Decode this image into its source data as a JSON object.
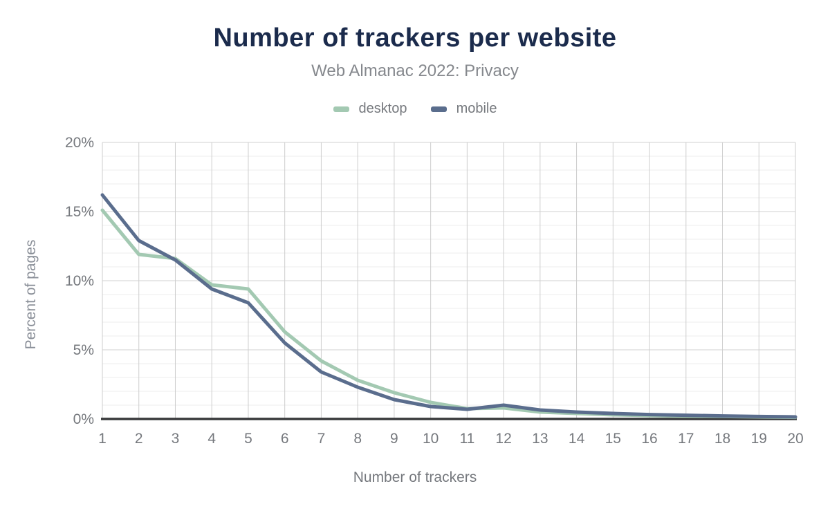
{
  "header": {
    "title": "Number of trackers per website",
    "subtitle": "Web Almanac 2022: Privacy"
  },
  "legend": {
    "items": [
      {
        "label": "desktop",
        "color": "#a3c9b2"
      },
      {
        "label": "mobile",
        "color": "#5a6d8d"
      }
    ]
  },
  "axes": {
    "xlabel": "Number of trackers",
    "ylabel": "Percent of pages"
  },
  "chart_data": {
    "type": "line",
    "title": "Number of trackers per website",
    "subtitle": "Web Almanac 2022: Privacy",
    "xlabel": "Number of trackers",
    "ylabel": "Percent of pages",
    "x": [
      1,
      2,
      3,
      4,
      5,
      6,
      7,
      8,
      9,
      10,
      11,
      12,
      13,
      14,
      15,
      16,
      17,
      18,
      19,
      20
    ],
    "xtick_labels": [
      "1",
      "2",
      "3",
      "4",
      "5",
      "6",
      "7",
      "8",
      "9",
      "10",
      "11",
      "12",
      "13",
      "14",
      "15",
      "16",
      "17",
      "18",
      "19",
      "20"
    ],
    "ylim": [
      0,
      20
    ],
    "ytick_values": [
      0,
      5,
      10,
      15,
      20
    ],
    "ytick_labels": [
      "0%",
      "5%",
      "10%",
      "15%",
      "20%"
    ],
    "minor_y_step": 1,
    "grid": true,
    "legend_position": "top",
    "series": [
      {
        "name": "desktop",
        "color": "#a3c9b2",
        "values": [
          15.1,
          11.9,
          11.6,
          9.7,
          9.4,
          6.3,
          4.2,
          2.8,
          1.9,
          1.2,
          0.75,
          0.8,
          0.5,
          0.4,
          0.3,
          0.25,
          0.2,
          0.18,
          0.15,
          0.12
        ]
      },
      {
        "name": "mobile",
        "color": "#5a6d8d",
        "values": [
          16.2,
          12.9,
          11.5,
          9.4,
          8.4,
          5.5,
          3.4,
          2.3,
          1.4,
          0.9,
          0.7,
          1.0,
          0.65,
          0.5,
          0.4,
          0.32,
          0.27,
          0.22,
          0.18,
          0.15
        ]
      }
    ]
  },
  "style": {
    "title_color": "#1b2b4c",
    "text_color": "#75787d",
    "axis_color": "#37383a",
    "grid_major": "#d2d2d2",
    "grid_minor": "#ececec",
    "grid_vertical": "#cdcdcd",
    "background": "#ffffff"
  }
}
